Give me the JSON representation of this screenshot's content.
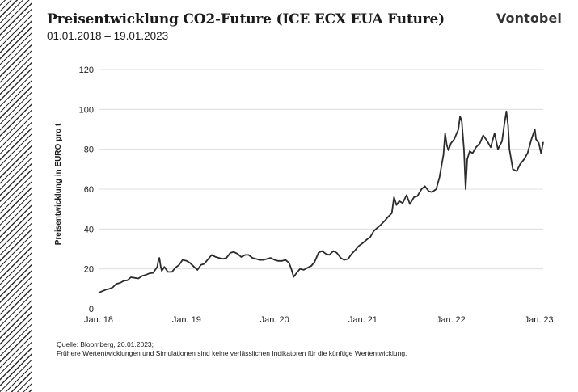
{
  "header": {
    "title": "Preisentwicklung CO2-Future (ICE ECX EUA Future)",
    "subtitle": "01.01.2018 – 19.01.2023",
    "logo_text": "Vontobel"
  },
  "footer": {
    "source": "Quelle: Bloomberg, 20.01.2023;",
    "disclaimer": "Frühere Wertentwicklungen und Simulationen sind keine verlässlichen Indikatoren für die künftige Wertentwicklung."
  },
  "colors": {
    "line": "#2b2b2b",
    "grid": "#d9d9d9",
    "hatch": "#2b2b2b"
  },
  "chart_data": {
    "type": "line",
    "title": "Preisentwicklung CO2-Future (ICE ECX EUA Future)",
    "subtitle": "01.01.2018 – 19.01.2023",
    "xlabel": "",
    "ylabel": "Preisentwicklung in EURO  pro t",
    "ylim": [
      0,
      120
    ],
    "yticks": [
      0,
      20,
      40,
      60,
      80,
      100,
      120
    ],
    "xlim": [
      "2018-01-01",
      "2023-01-19"
    ],
    "xticks": [
      {
        "date": "2018-01-01",
        "label": "Jan. 18"
      },
      {
        "date": "2019-01-01",
        "label": "Jan. 19"
      },
      {
        "date": "2020-01-01",
        "label": "Jan. 20"
      },
      {
        "date": "2021-01-01",
        "label": "Jan. 21"
      },
      {
        "date": "2022-01-01",
        "label": "Jan. 22"
      },
      {
        "date": "2023-01-01",
        "label": "Jan. 23"
      }
    ],
    "grid": "horizontal",
    "legend": "none",
    "series": [
      {
        "points": [
          [
            "2018-01-01",
            8.0
          ],
          [
            "2018-01-15",
            8.8
          ],
          [
            "2018-02-01",
            9.6
          ],
          [
            "2018-02-15",
            10.0
          ],
          [
            "2018-03-01",
            10.8
          ],
          [
            "2018-03-15",
            12.5
          ],
          [
            "2018-04-01",
            13.0
          ],
          [
            "2018-04-15",
            14.0
          ],
          [
            "2018-05-01",
            14.3
          ],
          [
            "2018-05-15",
            15.8
          ],
          [
            "2018-06-01",
            15.5
          ],
          [
            "2018-06-15",
            15.2
          ],
          [
            "2018-07-01",
            16.5
          ],
          [
            "2018-07-15",
            17.0
          ],
          [
            "2018-08-01",
            17.8
          ],
          [
            "2018-08-15",
            18.0
          ],
          [
            "2018-09-01",
            21.0
          ],
          [
            "2018-09-07",
            25.0
          ],
          [
            "2018-09-10",
            25.5
          ],
          [
            "2018-09-15",
            21.5
          ],
          [
            "2018-09-20",
            19.0
          ],
          [
            "2018-10-01",
            21.0
          ],
          [
            "2018-10-15",
            18.5
          ],
          [
            "2018-11-01",
            18.5
          ],
          [
            "2018-11-15",
            20.5
          ],
          [
            "2018-12-01",
            22.0
          ],
          [
            "2018-12-15",
            24.5
          ],
          [
            "2019-01-01",
            24.0
          ],
          [
            "2019-01-15",
            23.0
          ],
          [
            "2019-02-01",
            21.0
          ],
          [
            "2019-02-15",
            19.5
          ],
          [
            "2019-03-01",
            22.0
          ],
          [
            "2019-03-15",
            22.5
          ],
          [
            "2019-04-01",
            25.0
          ],
          [
            "2019-04-15",
            27.0
          ],
          [
            "2019-05-01",
            26.0
          ],
          [
            "2019-05-15",
            25.5
          ],
          [
            "2019-06-01",
            25.0
          ],
          [
            "2019-06-15",
            25.5
          ],
          [
            "2019-07-01",
            28.0
          ],
          [
            "2019-07-15",
            28.5
          ],
          [
            "2019-08-01",
            27.5
          ],
          [
            "2019-08-15",
            26.0
          ],
          [
            "2019-09-01",
            27.0
          ],
          [
            "2019-09-15",
            27.0
          ],
          [
            "2019-10-01",
            25.5
          ],
          [
            "2019-10-15",
            25.0
          ],
          [
            "2019-11-01",
            24.5
          ],
          [
            "2019-11-15",
            24.5
          ],
          [
            "2019-12-01",
            25.0
          ],
          [
            "2019-12-15",
            25.5
          ],
          [
            "2020-01-01",
            24.5
          ],
          [
            "2020-01-15",
            24.0
          ],
          [
            "2020-02-01",
            24.0
          ],
          [
            "2020-02-15",
            24.5
          ],
          [
            "2020-03-01",
            23.0
          ],
          [
            "2020-03-10",
            20.0
          ],
          [
            "2020-03-20",
            16.0
          ],
          [
            "2020-04-01",
            18.0
          ],
          [
            "2020-04-15",
            20.0
          ],
          [
            "2020-05-01",
            19.5
          ],
          [
            "2020-05-15",
            20.5
          ],
          [
            "2020-06-01",
            21.5
          ],
          [
            "2020-06-15",
            23.5
          ],
          [
            "2020-07-01",
            28.0
          ],
          [
            "2020-07-15",
            29.0
          ],
          [
            "2020-08-01",
            27.5
          ],
          [
            "2020-08-15",
            27.0
          ],
          [
            "2020-09-01",
            29.0
          ],
          [
            "2020-09-15",
            28.0
          ],
          [
            "2020-10-01",
            25.5
          ],
          [
            "2020-10-15",
            24.5
          ],
          [
            "2020-11-01",
            25.0
          ],
          [
            "2020-11-15",
            27.5
          ],
          [
            "2020-12-01",
            29.5
          ],
          [
            "2020-12-15",
            31.5
          ],
          [
            "2021-01-01",
            33.0
          ],
          [
            "2021-01-15",
            34.5
          ],
          [
            "2021-02-01",
            36.0
          ],
          [
            "2021-02-15",
            39.0
          ],
          [
            "2021-03-01",
            40.5
          ],
          [
            "2021-03-15",
            42.0
          ],
          [
            "2021-04-01",
            44.0
          ],
          [
            "2021-04-15",
            46.0
          ],
          [
            "2021-05-01",
            48.0
          ],
          [
            "2021-05-10",
            56.0
          ],
          [
            "2021-05-20",
            52.0
          ],
          [
            "2021-06-01",
            54.0
          ],
          [
            "2021-06-15",
            53.0
          ],
          [
            "2021-07-01",
            57.0
          ],
          [
            "2021-07-15",
            52.5
          ],
          [
            "2021-08-01",
            56.0
          ],
          [
            "2021-08-15",
            56.5
          ],
          [
            "2021-09-01",
            60.0
          ],
          [
            "2021-09-15",
            61.5
          ],
          [
            "2021-10-01",
            59.0
          ],
          [
            "2021-10-15",
            58.5
          ],
          [
            "2021-11-01",
            60.0
          ],
          [
            "2021-11-15",
            66.0
          ],
          [
            "2021-11-25",
            73.0
          ],
          [
            "2021-12-01",
            77.0
          ],
          [
            "2021-12-08",
            88.0
          ],
          [
            "2021-12-15",
            82.0
          ],
          [
            "2021-12-22",
            79.5
          ],
          [
            "2022-01-01",
            83.0
          ],
          [
            "2022-01-15",
            85.0
          ],
          [
            "2022-02-01",
            90.0
          ],
          [
            "2022-02-08",
            96.5
          ],
          [
            "2022-02-15",
            94.0
          ],
          [
            "2022-02-24",
            80.0
          ],
          [
            "2022-03-03",
            60.0
          ],
          [
            "2022-03-10",
            75.0
          ],
          [
            "2022-03-20",
            79.0
          ],
          [
            "2022-04-01",
            78.0
          ],
          [
            "2022-04-15",
            81.0
          ],
          [
            "2022-05-01",
            83.0
          ],
          [
            "2022-05-15",
            87.0
          ],
          [
            "2022-06-01",
            84.0
          ],
          [
            "2022-06-15",
            81.0
          ],
          [
            "2022-07-01",
            88.0
          ],
          [
            "2022-07-15",
            80.0
          ],
          [
            "2022-08-01",
            84.0
          ],
          [
            "2022-08-10",
            92.0
          ],
          [
            "2022-08-19",
            99.0
          ],
          [
            "2022-08-26",
            92.0
          ],
          [
            "2022-09-01",
            80.0
          ],
          [
            "2022-09-15",
            70.0
          ],
          [
            "2022-10-01",
            69.0
          ],
          [
            "2022-10-15",
            72.5
          ],
          [
            "2022-11-01",
            75.0
          ],
          [
            "2022-11-15",
            78.0
          ],
          [
            "2022-12-01",
            85.0
          ],
          [
            "2022-12-15",
            90.0
          ],
          [
            "2022-12-20",
            85.0
          ],
          [
            "2023-01-01",
            83.0
          ],
          [
            "2023-01-10",
            78.0
          ],
          [
            "2023-01-19",
            83.5
          ]
        ]
      }
    ]
  }
}
